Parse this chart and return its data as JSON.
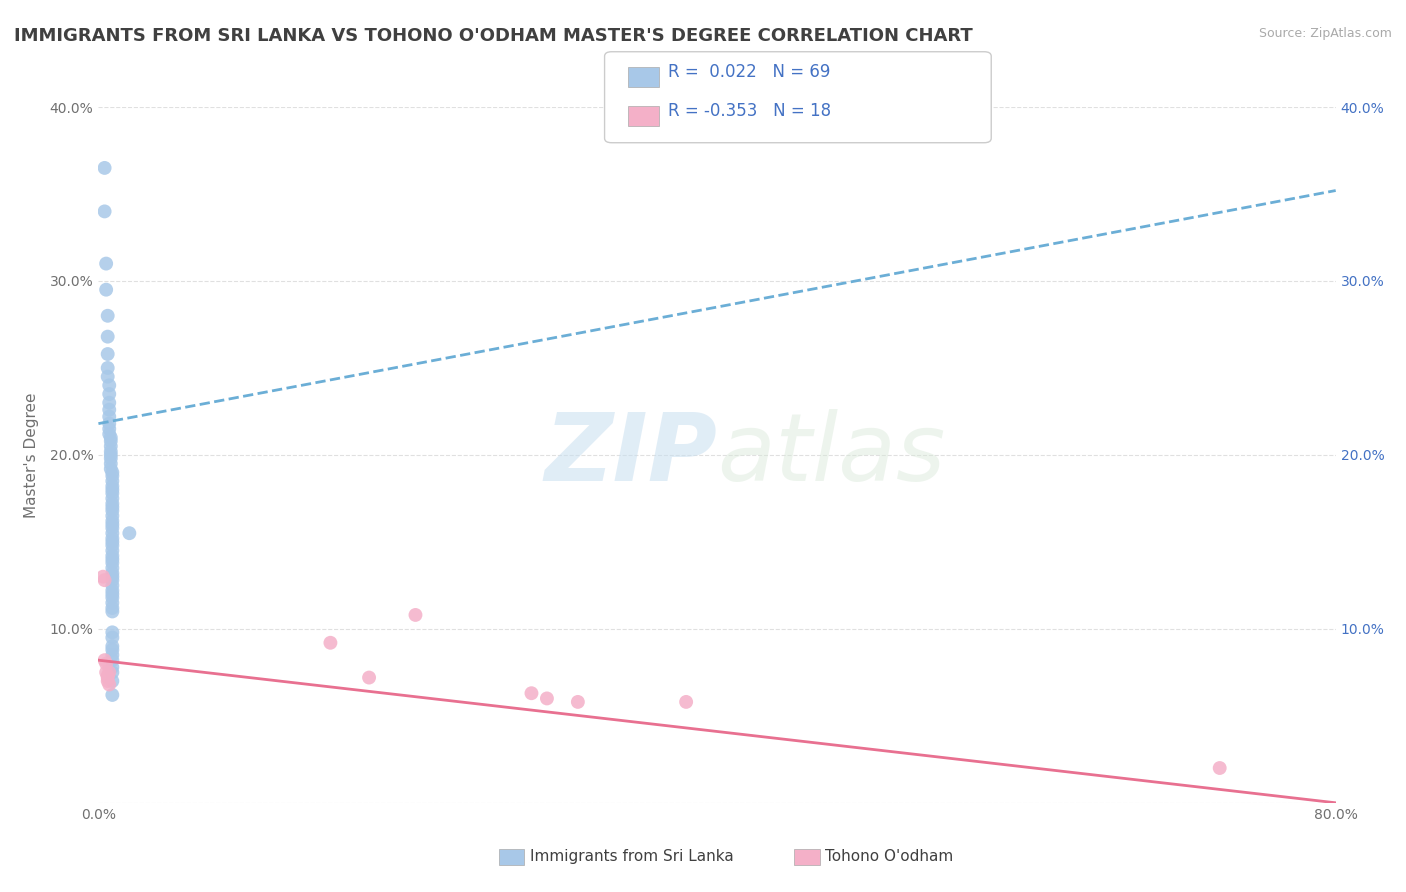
{
  "title": "IMMIGRANTS FROM SRI LANKA VS TOHONO O'ODHAM MASTER'S DEGREE CORRELATION CHART",
  "source": "Source: ZipAtlas.com",
  "ylabel": "Master's Degree",
  "xlim": [
    0.0,
    0.8
  ],
  "ylim": [
    0.0,
    0.4
  ],
  "color_blue": "#a8c8e8",
  "color_pink": "#f4b0c8",
  "line_blue": "#6baed6",
  "line_pink": "#e87090",
  "right_yaxis_color": "#4472c4",
  "title_color": "#404040",
  "background_color": "#ffffff",
  "grid_color": "#e0e0e0",
  "legend_label1": "Immigrants from Sri Lanka",
  "legend_label2": "Tohono O'odham",
  "blue_x": [
    0.004,
    0.004,
    0.005,
    0.005,
    0.006,
    0.006,
    0.006,
    0.006,
    0.006,
    0.007,
    0.007,
    0.007,
    0.007,
    0.007,
    0.007,
    0.007,
    0.007,
    0.008,
    0.008,
    0.008,
    0.008,
    0.008,
    0.008,
    0.008,
    0.008,
    0.009,
    0.009,
    0.009,
    0.009,
    0.009,
    0.009,
    0.009,
    0.009,
    0.009,
    0.009,
    0.009,
    0.009,
    0.009,
    0.009,
    0.009,
    0.009,
    0.009,
    0.009,
    0.009,
    0.009,
    0.009,
    0.009,
    0.009,
    0.009,
    0.009,
    0.009,
    0.009,
    0.009,
    0.009,
    0.009,
    0.009,
    0.009,
    0.009,
    0.02,
    0.009,
    0.009,
    0.009,
    0.009,
    0.009,
    0.009,
    0.009,
    0.009,
    0.009,
    0.009
  ],
  "blue_y": [
    0.365,
    0.34,
    0.31,
    0.295,
    0.28,
    0.268,
    0.258,
    0.25,
    0.245,
    0.24,
    0.235,
    0.23,
    0.226,
    0.222,
    0.218,
    0.215,
    0.212,
    0.21,
    0.208,
    0.205,
    0.202,
    0.2,
    0.198,
    0.195,
    0.192,
    0.19,
    0.188,
    0.185,
    0.182,
    0.18,
    0.178,
    0.175,
    0.172,
    0.17,
    0.168,
    0.165,
    0.162,
    0.16,
    0.158,
    0.155,
    0.152,
    0.15,
    0.148,
    0.145,
    0.142,
    0.14,
    0.138,
    0.135,
    0.132,
    0.13,
    0.128,
    0.125,
    0.122,
    0.12,
    0.118,
    0.115,
    0.112,
    0.11,
    0.155,
    0.098,
    0.095,
    0.09,
    0.088,
    0.085,
    0.082,
    0.078,
    0.075,
    0.07,
    0.062
  ],
  "pink_x": [
    0.003,
    0.004,
    0.004,
    0.005,
    0.005,
    0.006,
    0.006,
    0.006,
    0.007,
    0.007,
    0.15,
    0.175,
    0.205,
    0.28,
    0.29,
    0.31,
    0.38,
    0.725
  ],
  "pink_y": [
    0.13,
    0.128,
    0.082,
    0.08,
    0.075,
    0.073,
    0.072,
    0.07,
    0.075,
    0.068,
    0.092,
    0.072,
    0.108,
    0.063,
    0.06,
    0.058,
    0.058,
    0.02
  ],
  "blue_trend_x0": 0.0,
  "blue_trend_x1": 0.8,
  "blue_trend_y0": 0.218,
  "blue_trend_y1": 0.352,
  "pink_trend_x0": 0.0,
  "pink_trend_x1": 0.8,
  "pink_trend_y0": 0.082,
  "pink_trend_y1": 0.0
}
